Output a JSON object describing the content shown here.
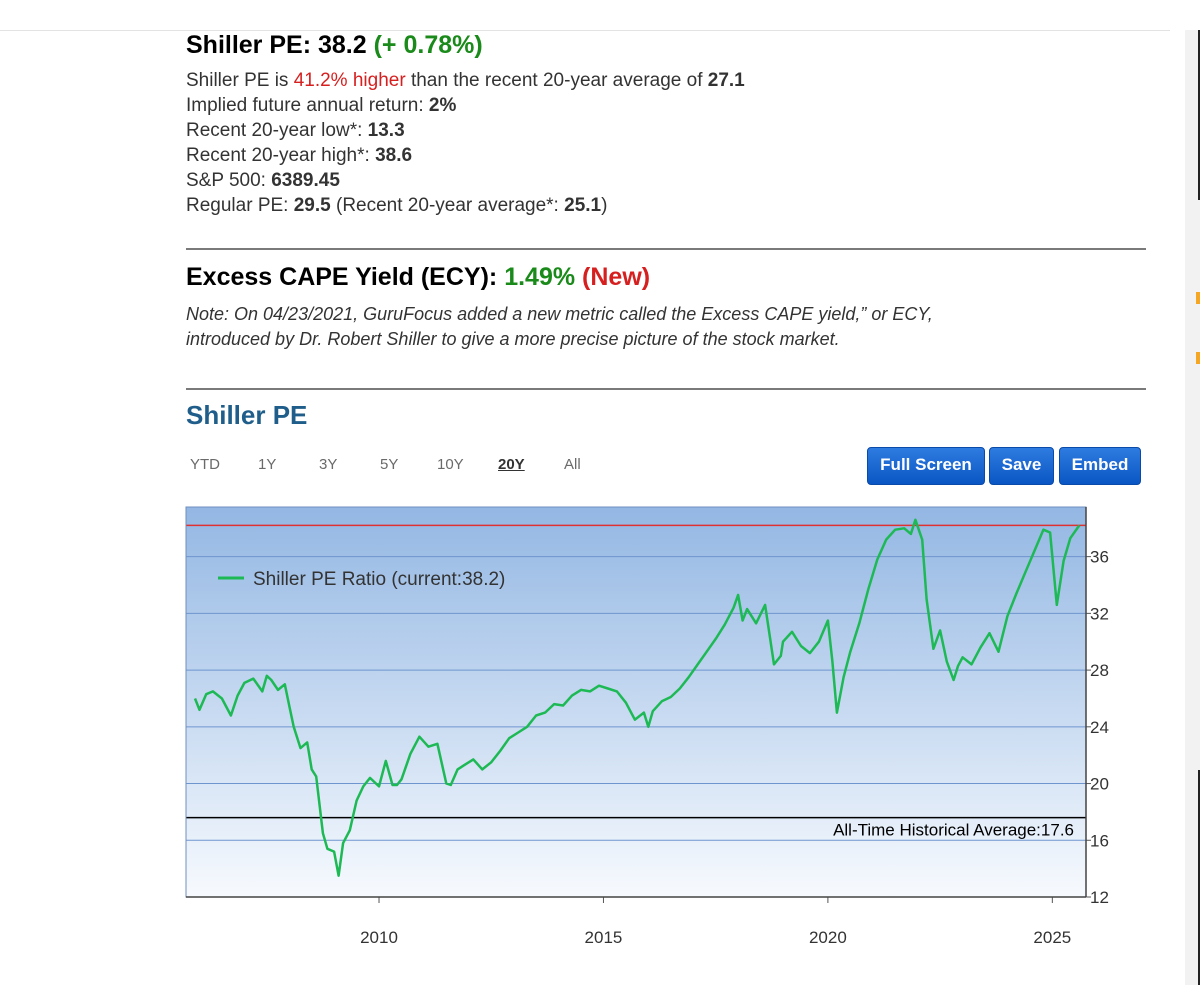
{
  "header": {
    "title_prefix": "Shiller PE: 38.2",
    "title_change": "(+ 0.78%)"
  },
  "stats": {
    "line1_a": "Shiller PE is ",
    "line1_b": "41.2% higher",
    "line1_c": " than the recent 20-year average of ",
    "line1_d": "27.1",
    "line2_a": "Implied future annual return: ",
    "line2_b": "2%",
    "line3_a": "Recent 20-year low*: ",
    "line3_b": "13.3",
    "line4_a": "Recent 20-year high*: ",
    "line4_b": "38.6",
    "line5_a": "S&P 500: ",
    "line5_b": "6389.45",
    "line6_a": "Regular PE: ",
    "line6_b": "29.5",
    "line6_c": " (Recent 20-year average*: ",
    "line6_d": "25.1",
    "line6_e": ")"
  },
  "ecy": {
    "title": "Excess CAPE Yield (ECY):",
    "value": "1.49%",
    "badge": "(New)",
    "note_line1": "Note: On 04/23/2021, GuruFocus added a new metric called the Excess CAPE yield,” or ECY,",
    "note_line2": "introduced by Dr. Robert Shiller to give a more precise picture of the stock market."
  },
  "chart_section": {
    "title": "Shiller PE",
    "ranges": [
      "YTD",
      "1Y",
      "3Y",
      "5Y",
      "10Y",
      "20Y",
      "All"
    ],
    "selected_range": "20Y",
    "buttons": {
      "full_screen": "Full Screen",
      "save": "Save",
      "embed": "Embed"
    }
  },
  "colors": {
    "line": "#1db954",
    "current_line": "#e03030",
    "average_line": "#000000",
    "plot_top": "#93b7e3",
    "plot_bottom": "#f7fafe",
    "button": "#0a56c4"
  },
  "chart_data": {
    "type": "line",
    "series": [
      {
        "name": "Shiller PE Ratio (current:38.2)",
        "x": [
          2005.9,
          2006.0,
          2006.15,
          2006.3,
          2006.5,
          2006.7,
          2006.85,
          2007.0,
          2007.2,
          2007.4,
          2007.5,
          2007.6,
          2007.75,
          2007.9,
          2008.0,
          2008.1,
          2008.25,
          2008.4,
          2008.5,
          2008.6,
          2008.75,
          2008.85,
          2009.0,
          2009.1,
          2009.2,
          2009.35,
          2009.5,
          2009.65,
          2009.8,
          2010.0,
          2010.15,
          2010.3,
          2010.4,
          2010.5,
          2010.7,
          2010.9,
          2011.1,
          2011.3,
          2011.5,
          2011.6,
          2011.75,
          2011.9,
          2012.1,
          2012.3,
          2012.5,
          2012.7,
          2012.9,
          2013.1,
          2013.3,
          2013.5,
          2013.7,
          2013.9,
          2014.1,
          2014.3,
          2014.5,
          2014.7,
          2014.9,
          2015.1,
          2015.3,
          2015.5,
          2015.7,
          2015.9,
          2016.0,
          2016.1,
          2016.3,
          2016.5,
          2016.7,
          2016.9,
          2017.1,
          2017.3,
          2017.5,
          2017.7,
          2017.9,
          2018.0,
          2018.1,
          2018.2,
          2018.4,
          2018.6,
          2018.8,
          2018.95,
          2019.0,
          2019.2,
          2019.4,
          2019.6,
          2019.8,
          2020.0,
          2020.1,
          2020.2,
          2020.35,
          2020.5,
          2020.7,
          2020.9,
          2021.1,
          2021.3,
          2021.5,
          2021.7,
          2021.85,
          2021.95,
          2022.1,
          2022.2,
          2022.35,
          2022.5,
          2022.65,
          2022.8,
          2022.9,
          2023.0,
          2023.2,
          2023.4,
          2023.6,
          2023.8,
          2024.0,
          2024.2,
          2024.4,
          2024.6,
          2024.8,
          2024.95,
          2025.1,
          2025.25,
          2025.4,
          2025.6
        ],
        "values": [
          26.0,
          25.2,
          26.3,
          26.5,
          26.0,
          24.8,
          26.2,
          27.1,
          27.4,
          26.5,
          27.6,
          27.3,
          26.6,
          27.0,
          25.5,
          24.0,
          22.5,
          22.9,
          21.0,
          20.5,
          16.5,
          15.4,
          15.2,
          13.5,
          15.8,
          16.7,
          18.8,
          19.8,
          20.4,
          19.8,
          21.6,
          19.9,
          19.9,
          20.3,
          22.1,
          23.3,
          22.6,
          22.8,
          20.0,
          19.9,
          21.0,
          21.3,
          21.7,
          21.0,
          21.5,
          22.3,
          23.2,
          23.6,
          24.0,
          24.8,
          25.0,
          25.6,
          25.5,
          26.2,
          26.6,
          26.5,
          26.9,
          26.7,
          26.5,
          25.7,
          24.5,
          25.0,
          24.0,
          25.1,
          25.8,
          26.1,
          26.7,
          27.5,
          28.4,
          29.3,
          30.2,
          31.2,
          32.4,
          33.3,
          31.5,
          32.3,
          31.3,
          32.6,
          28.4,
          29.0,
          30.0,
          30.7,
          29.7,
          29.2,
          30.0,
          31.5,
          28.6,
          25.0,
          27.5,
          29.3,
          31.3,
          33.7,
          35.8,
          37.2,
          37.9,
          38.0,
          37.6,
          38.6,
          37.2,
          33.0,
          29.5,
          30.8,
          28.6,
          27.3,
          28.3,
          28.9,
          28.4,
          29.6,
          30.6,
          29.3,
          31.8,
          33.4,
          34.9,
          36.4,
          37.9,
          37.7,
          32.6,
          35.7,
          37.3,
          38.2
        ]
      }
    ],
    "current": 38.2,
    "reference_lines": [
      {
        "value": 38.2,
        "label": ""
      },
      {
        "value": 17.6,
        "label": "All-Time Historical Average:17.6"
      }
    ],
    "xlim": [
      2005.7,
      2025.75
    ],
    "xticks": [
      2010,
      2015,
      2020,
      2025
    ],
    "ylim": [
      12,
      39.5
    ],
    "yticks": [
      12,
      16,
      20,
      24,
      28,
      32,
      36
    ],
    "grid": true,
    "legend": "top-left",
    "title": "",
    "xlabel": "",
    "ylabel": ""
  }
}
